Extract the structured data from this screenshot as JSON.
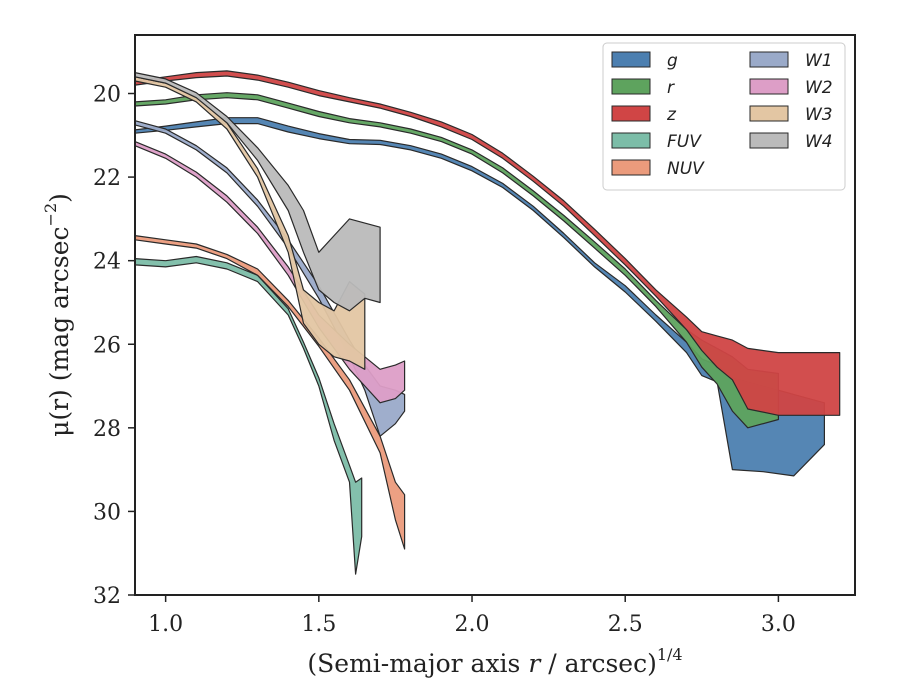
{
  "chart_data": {
    "type": "area",
    "xlabel": "(Semi-major axis r / arcsec)",
    "xlabel_italic": "r",
    "xlabel_power": "1/4",
    "ylabel_text": "μ(r) (mag arcsec",
    "ylabel_power": "−2",
    "ylabel_close": ")",
    "xlim": [
      0.9,
      3.25
    ],
    "ylim": [
      32,
      18.6
    ],
    "y_inverted": true,
    "xticks": [
      1.0,
      1.5,
      2.0,
      2.5,
      3.0
    ],
    "xtick_labels": [
      "1.0",
      "1.5",
      "2.0",
      "2.5",
      "3.0"
    ],
    "yticks": [
      20,
      22,
      24,
      26,
      28,
      30,
      32
    ],
    "ytick_labels": [
      "20",
      "22",
      "24",
      "26",
      "28",
      "30",
      "32"
    ],
    "grid": false,
    "legend_position": "top-right",
    "legend_columns": 2,
    "series": [
      {
        "name": "g",
        "color": "#4c7fb0",
        "points": [
          [
            0.9,
            20.95,
            20.87
          ],
          [
            1.0,
            20.88,
            20.78
          ],
          [
            1.1,
            20.8,
            20.68
          ],
          [
            1.2,
            20.72,
            20.58
          ],
          [
            1.3,
            20.72,
            20.58
          ],
          [
            1.4,
            20.92,
            20.78
          ],
          [
            1.5,
            21.08,
            20.96
          ],
          [
            1.6,
            21.2,
            21.1
          ],
          [
            1.7,
            21.22,
            21.12
          ],
          [
            1.8,
            21.35,
            21.25
          ],
          [
            1.9,
            21.55,
            21.45
          ],
          [
            2.0,
            21.85,
            21.75
          ],
          [
            2.1,
            22.25,
            22.15
          ],
          [
            2.2,
            22.8,
            22.7
          ],
          [
            2.3,
            23.45,
            23.35
          ],
          [
            2.4,
            24.15,
            24.05
          ],
          [
            2.5,
            24.75,
            24.6
          ],
          [
            2.6,
            25.45,
            25.3
          ],
          [
            2.7,
            26.2,
            25.95
          ],
          [
            2.75,
            26.75,
            26.35
          ],
          [
            2.8,
            26.9,
            26.5
          ],
          [
            2.85,
            29.0,
            26.8
          ],
          [
            2.95,
            29.05,
            27.0
          ],
          [
            3.05,
            29.15,
            27.2
          ],
          [
            3.15,
            28.4,
            27.4
          ]
        ]
      },
      {
        "name": "r",
        "color": "#5ea35e",
        "points": [
          [
            0.9,
            20.3,
            20.2
          ],
          [
            1.0,
            20.25,
            20.15
          ],
          [
            1.1,
            20.15,
            20.03
          ],
          [
            1.2,
            20.1,
            19.98
          ],
          [
            1.3,
            20.15,
            20.03
          ],
          [
            1.4,
            20.35,
            20.23
          ],
          [
            1.5,
            20.55,
            20.43
          ],
          [
            1.6,
            20.7,
            20.6
          ],
          [
            1.7,
            20.8,
            20.7
          ],
          [
            1.8,
            20.95,
            20.85
          ],
          [
            1.9,
            21.15,
            21.05
          ],
          [
            2.0,
            21.45,
            21.35
          ],
          [
            2.1,
            21.9,
            21.78
          ],
          [
            2.2,
            22.45,
            22.33
          ],
          [
            2.3,
            23.05,
            22.92
          ],
          [
            2.4,
            23.7,
            23.55
          ],
          [
            2.5,
            24.35,
            24.2
          ],
          [
            2.6,
            25.1,
            24.95
          ],
          [
            2.7,
            25.95,
            25.65
          ],
          [
            2.75,
            26.55,
            25.9
          ],
          [
            2.8,
            26.95,
            26.1
          ],
          [
            2.85,
            27.6,
            26.3
          ],
          [
            2.9,
            28.0,
            26.6
          ],
          [
            3.0,
            27.8,
            26.7
          ]
        ]
      },
      {
        "name": "z",
        "color": "#d04545",
        "points": [
          [
            0.9,
            19.8,
            19.7
          ],
          [
            1.0,
            19.7,
            19.6
          ],
          [
            1.1,
            19.62,
            19.5
          ],
          [
            1.2,
            19.58,
            19.46
          ],
          [
            1.3,
            19.68,
            19.56
          ],
          [
            1.4,
            19.85,
            19.73
          ],
          [
            1.5,
            20.05,
            19.93
          ],
          [
            1.6,
            20.2,
            20.1
          ],
          [
            1.7,
            20.35,
            20.25
          ],
          [
            1.8,
            20.55,
            20.45
          ],
          [
            1.9,
            20.8,
            20.68
          ],
          [
            2.0,
            21.1,
            20.98
          ],
          [
            2.1,
            21.55,
            21.43
          ],
          [
            2.2,
            22.1,
            21.98
          ],
          [
            2.3,
            22.7,
            22.57
          ],
          [
            2.4,
            23.4,
            23.25
          ],
          [
            2.5,
            24.1,
            23.95
          ],
          [
            2.6,
            24.85,
            24.7
          ],
          [
            2.7,
            25.65,
            25.35
          ],
          [
            2.75,
            26.15,
            25.7
          ],
          [
            2.8,
            26.55,
            25.8
          ],
          [
            2.85,
            26.85,
            25.9
          ],
          [
            2.9,
            27.55,
            26.1
          ],
          [
            3.0,
            27.7,
            26.2
          ],
          [
            3.1,
            27.7,
            26.2
          ],
          [
            3.2,
            27.7,
            26.2
          ]
        ]
      },
      {
        "name": "FUV",
        "color": "#7cbda8",
        "points": [
          [
            0.9,
            24.1,
            23.95
          ],
          [
            1.0,
            24.15,
            24.0
          ],
          [
            1.1,
            24.05,
            23.9
          ],
          [
            1.2,
            24.2,
            24.05
          ],
          [
            1.3,
            24.5,
            24.35
          ],
          [
            1.4,
            25.3,
            25.15
          ],
          [
            1.45,
            26.1,
            25.95
          ],
          [
            1.5,
            27.0,
            26.8
          ],
          [
            1.55,
            28.3,
            27.9
          ],
          [
            1.6,
            29.3,
            28.9
          ],
          [
            1.62,
            31.5,
            29.3
          ],
          [
            1.64,
            30.6,
            29.2
          ]
        ]
      },
      {
        "name": "NUV",
        "color": "#eb9b7c",
        "points": [
          [
            0.9,
            23.5,
            23.4
          ],
          [
            1.0,
            23.6,
            23.5
          ],
          [
            1.1,
            23.7,
            23.6
          ],
          [
            1.2,
            23.95,
            23.85
          ],
          [
            1.3,
            24.35,
            24.2
          ],
          [
            1.4,
            25.1,
            24.95
          ],
          [
            1.5,
            26.05,
            25.85
          ],
          [
            1.6,
            27.1,
            26.85
          ],
          [
            1.7,
            28.6,
            28.2
          ],
          [
            1.75,
            30.2,
            29.3
          ],
          [
            1.78,
            30.9,
            29.6
          ]
        ]
      },
      {
        "name": "W1",
        "color": "#9aaac9",
        "points": [
          [
            0.9,
            20.75,
            20.65
          ],
          [
            1.0,
            20.95,
            20.85
          ],
          [
            1.1,
            21.35,
            21.25
          ],
          [
            1.2,
            21.9,
            21.78
          ],
          [
            1.3,
            22.7,
            22.55
          ],
          [
            1.4,
            23.7,
            23.5
          ],
          [
            1.5,
            24.9,
            24.6
          ],
          [
            1.6,
            26.3,
            25.9
          ],
          [
            1.65,
            27.1,
            26.5
          ],
          [
            1.7,
            28.2,
            27.0
          ],
          [
            1.75,
            27.9,
            27.1
          ],
          [
            1.78,
            27.6,
            27.2
          ]
        ]
      },
      {
        "name": "W2",
        "color": "#dd9ec7",
        "points": [
          [
            0.9,
            21.25,
            21.15
          ],
          [
            1.0,
            21.55,
            21.45
          ],
          [
            1.1,
            22.0,
            21.88
          ],
          [
            1.2,
            22.6,
            22.45
          ],
          [
            1.3,
            23.35,
            23.2
          ],
          [
            1.4,
            24.35,
            24.15
          ],
          [
            1.5,
            25.6,
            25.3
          ],
          [
            1.6,
            26.6,
            26.0
          ],
          [
            1.65,
            27.0,
            26.3
          ],
          [
            1.7,
            27.4,
            26.6
          ],
          [
            1.75,
            27.3,
            26.5
          ],
          [
            1.78,
            27.1,
            26.4
          ]
        ]
      },
      {
        "name": "W3",
        "color": "#e3c6a3",
        "points": [
          [
            0.9,
            19.7,
            19.6
          ],
          [
            1.0,
            19.85,
            19.75
          ],
          [
            1.1,
            20.2,
            20.08
          ],
          [
            1.2,
            20.85,
            20.7
          ],
          [
            1.3,
            22.0,
            21.8
          ],
          [
            1.4,
            23.8,
            23.4
          ],
          [
            1.45,
            25.5,
            24.7
          ],
          [
            1.5,
            26.0,
            25.0
          ],
          [
            1.55,
            26.3,
            25.2
          ],
          [
            1.6,
            26.4,
            24.5
          ],
          [
            1.65,
            26.6,
            24.8
          ]
        ]
      },
      {
        "name": "W4",
        "color": "#bbbbbb",
        "points": [
          [
            0.9,
            19.6,
            19.5
          ],
          [
            1.0,
            19.75,
            19.65
          ],
          [
            1.1,
            20.1,
            19.98
          ],
          [
            1.2,
            20.7,
            20.55
          ],
          [
            1.3,
            21.6,
            21.3
          ],
          [
            1.4,
            22.8,
            22.2
          ],
          [
            1.45,
            23.8,
            22.8
          ],
          [
            1.5,
            24.7,
            23.8
          ],
          [
            1.55,
            25.0,
            23.4
          ],
          [
            1.6,
            25.2,
            23.0
          ],
          [
            1.65,
            24.9,
            23.1
          ],
          [
            1.7,
            25.0,
            23.2
          ]
        ]
      }
    ]
  }
}
